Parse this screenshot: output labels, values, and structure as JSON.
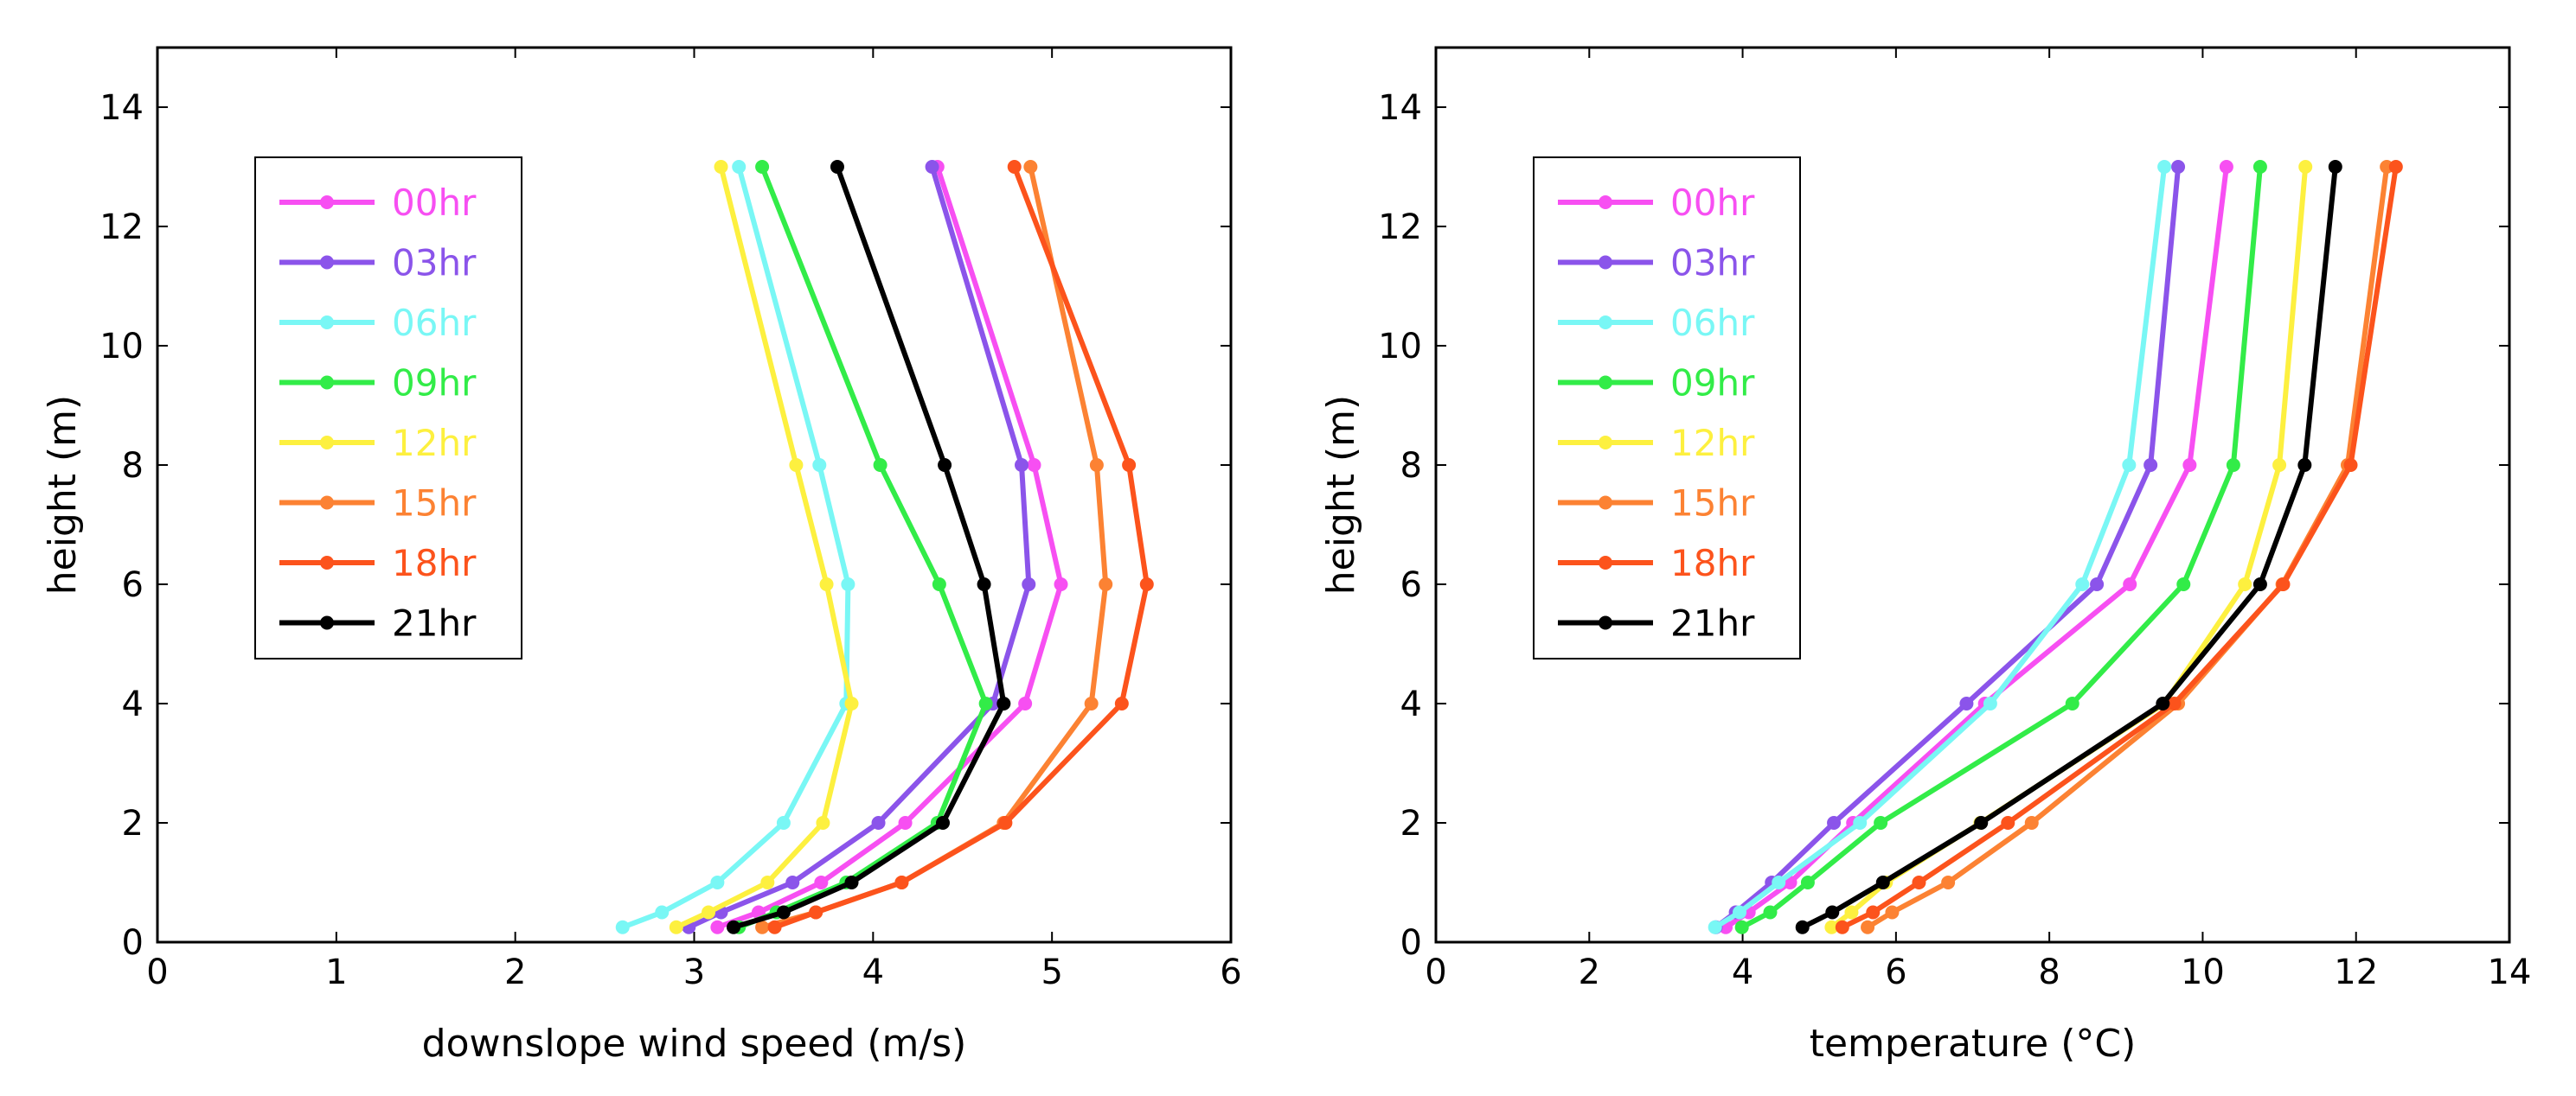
{
  "colors": {
    "00hr": "#f74ff2",
    "03hr": "#8b54ea",
    "06hr": "#79f7f5",
    "09hr": "#32ec48",
    "12hr": "#fdf03f",
    "15hr": "#fc8233",
    "18hr": "#fc531c",
    "21hr": "#000000"
  },
  "chart_data": [
    {
      "type": "line",
      "xlabel": "downslope wind speed (m/s)",
      "ylabel": "height (m)",
      "xlim": [
        0,
        6
      ],
      "ylim": [
        0,
        15
      ],
      "xticks": [
        "0",
        "1",
        "2",
        "3",
        "4",
        "5",
        "6"
      ],
      "yticks": [
        "0",
        "2",
        "4",
        "6",
        "8",
        "10",
        "12",
        "14"
      ],
      "legend_position": "upper-left",
      "heights": [
        0.25,
        0.5,
        1,
        2,
        4,
        6,
        8,
        13
      ],
      "series": [
        {
          "name": "00hr",
          "values": [
            3.13,
            3.36,
            3.71,
            4.18,
            4.85,
            5.05,
            4.9,
            4.36
          ]
        },
        {
          "name": "03hr",
          "values": [
            2.97,
            3.15,
            3.55,
            4.03,
            4.67,
            4.87,
            4.83,
            4.33
          ]
        },
        {
          "name": "06hr",
          "values": [
            2.6,
            2.82,
            3.13,
            3.5,
            3.85,
            3.86,
            3.7,
            3.25
          ]
        },
        {
          "name": "09hr",
          "values": [
            3.25,
            3.46,
            3.85,
            4.36,
            4.63,
            4.37,
            4.04,
            3.38
          ]
        },
        {
          "name": "12hr",
          "values": [
            2.9,
            3.08,
            3.41,
            3.72,
            3.88,
            3.74,
            3.57,
            3.15
          ]
        },
        {
          "name": "15hr",
          "values": [
            3.38,
            3.68,
            4.16,
            4.73,
            5.22,
            5.3,
            5.25,
            4.88
          ]
        },
        {
          "name": "18hr",
          "values": [
            3.45,
            3.68,
            4.16,
            4.74,
            5.39,
            5.53,
            5.43,
            4.79
          ]
        },
        {
          "name": "21hr",
          "values": [
            3.22,
            3.5,
            3.88,
            4.39,
            4.73,
            4.62,
            4.4,
            3.8
          ]
        }
      ]
    },
    {
      "type": "line",
      "xlabel": "temperature (°C)",
      "ylabel": "height (m)",
      "xlim": [
        0,
        14
      ],
      "ylim": [
        0,
        15
      ],
      "xticks": [
        "0",
        "2",
        "4",
        "6",
        "8",
        "10",
        "12",
        "14"
      ],
      "yticks": [
        "0",
        "2",
        "4",
        "6",
        "8",
        "10",
        "12",
        "14"
      ],
      "legend_position": "upper-left",
      "heights": [
        0.25,
        0.5,
        1,
        2,
        4,
        6,
        8,
        13
      ],
      "series": [
        {
          "name": "00hr",
          "values": [
            3.78,
            4.08,
            4.62,
            5.44,
            7.16,
            9.05,
            9.83,
            10.31
          ]
        },
        {
          "name": "03hr",
          "values": [
            3.65,
            3.91,
            4.38,
            5.19,
            6.92,
            8.62,
            9.32,
            9.68
          ]
        },
        {
          "name": "06hr",
          "values": [
            3.64,
            3.96,
            4.47,
            5.53,
            7.23,
            8.43,
            9.04,
            9.5
          ]
        },
        {
          "name": "09hr",
          "values": [
            3.99,
            4.36,
            4.85,
            5.8,
            8.3,
            9.75,
            10.4,
            10.75
          ]
        },
        {
          "name": "12hr",
          "values": [
            5.16,
            5.42,
            5.87,
            7.1,
            9.5,
            10.55,
            11.0,
            11.34
          ]
        },
        {
          "name": "15hr",
          "values": [
            5.63,
            5.95,
            6.68,
            7.77,
            9.68,
            11.04,
            11.89,
            12.4
          ]
        },
        {
          "name": "18hr",
          "values": [
            5.3,
            5.7,
            6.3,
            7.46,
            9.63,
            11.05,
            11.93,
            12.52
          ]
        },
        {
          "name": "21hr",
          "values": [
            4.78,
            5.17,
            5.83,
            7.11,
            9.48,
            10.75,
            11.33,
            11.73
          ]
        }
      ]
    }
  ]
}
